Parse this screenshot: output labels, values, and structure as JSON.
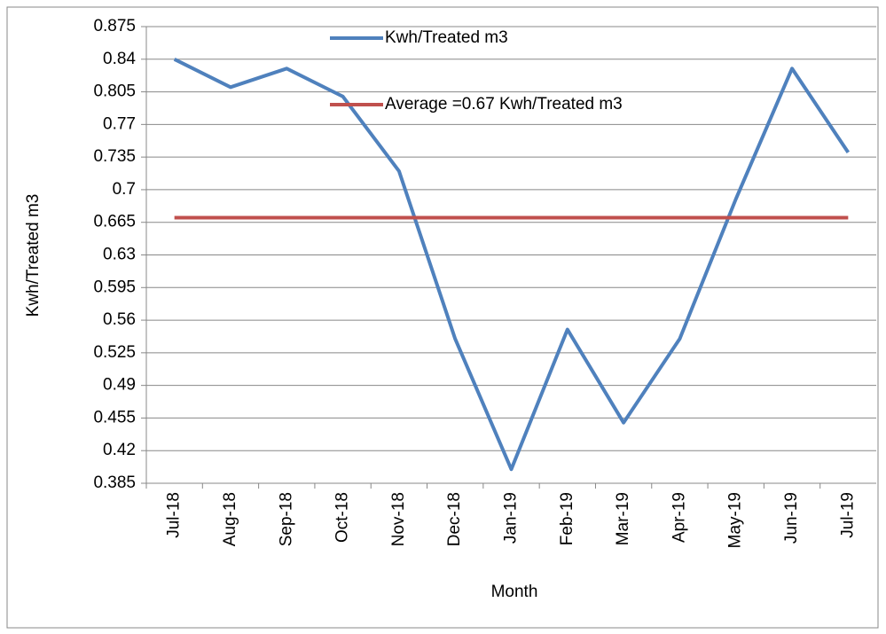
{
  "chart_data": {
    "type": "line",
    "x_label": "Month",
    "y_label": "Kwh/Treated m3",
    "categories": [
      "Jul-18",
      "Aug-18",
      "Sep-18",
      "Oct-18",
      "Nov-18",
      "Dec-18",
      "Jan-19",
      "Feb-19",
      "Mar-19",
      "Apr-19",
      "May-19",
      "Jun-19",
      "Jul-19"
    ],
    "series": [
      {
        "name": "Kwh/Treated m3",
        "color": "#4f81bd",
        "values": [
          0.84,
          0.81,
          0.83,
          0.8,
          0.72,
          0.54,
          0.4,
          0.55,
          0.45,
          0.54,
          0.69,
          0.83,
          0.74
        ]
      },
      {
        "name": "Average =0.67 Kwh/Treated m3",
        "color": "#c0504d",
        "values": [
          0.67,
          0.67,
          0.67,
          0.67,
          0.67,
          0.67,
          0.67,
          0.67,
          0.67,
          0.67,
          0.67,
          0.67,
          0.67
        ]
      }
    ],
    "ylim": [
      0.385,
      0.875
    ],
    "yticks": [
      0.385,
      0.42,
      0.455,
      0.49,
      0.525,
      0.56,
      0.595,
      0.63,
      0.665,
      0.7,
      0.735,
      0.77,
      0.805,
      0.84,
      0.875
    ],
    "grid": true,
    "legend": "top"
  }
}
